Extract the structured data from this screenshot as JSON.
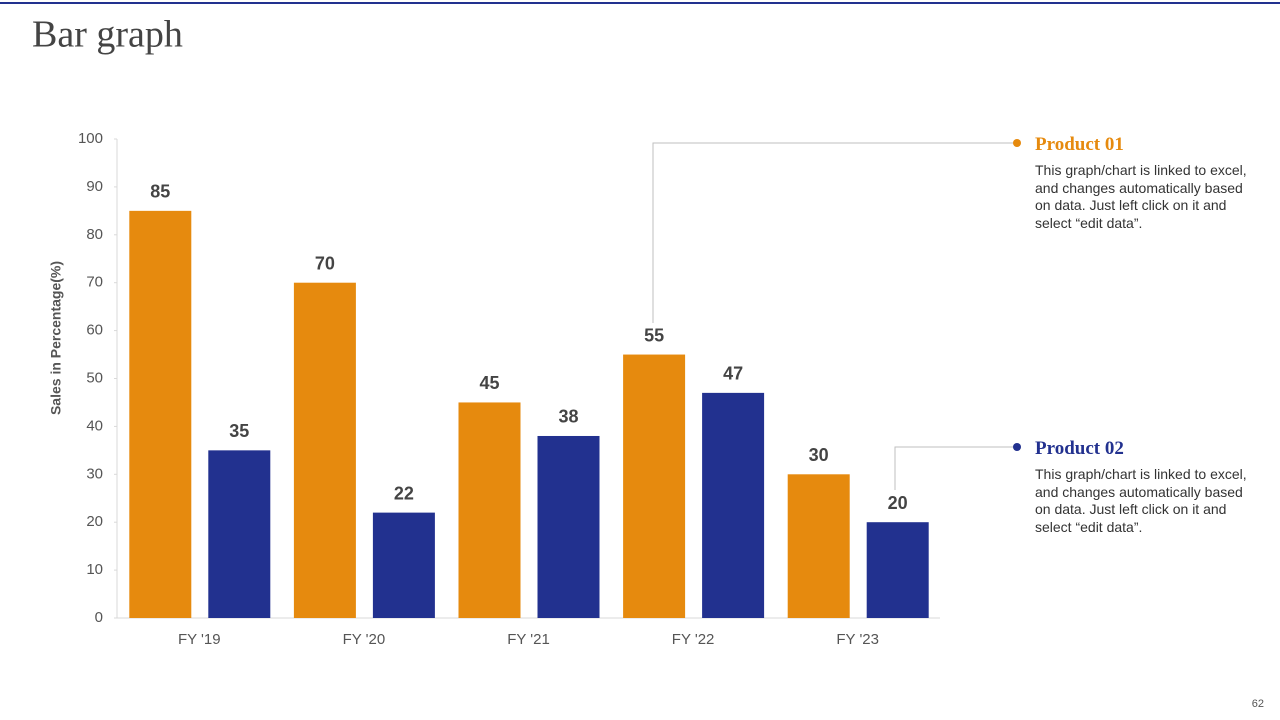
{
  "chart_data": {
    "type": "bar",
    "title": "Bar graph",
    "y_label": "Sales in Percentage(%)",
    "categories": [
      "FY '19",
      "FY '20",
      "FY '21",
      "FY '22",
      "FY '23"
    ],
    "series": [
      {
        "name": "Product 01",
        "color": "#e68a0e",
        "values": [
          85,
          70,
          45,
          55,
          30
        ],
        "description": "This graph/chart is linked to excel, and changes automatically based on data. Just left click on it and select “edit data”."
      },
      {
        "name": "Product 02",
        "color": "#22318f",
        "values": [
          35,
          22,
          38,
          47,
          20
        ],
        "description": "This graph/chart is linked to excel, and changes automatically based on data. Just left click on it and select “edit data”."
      }
    ],
    "ylim": [
      0,
      100
    ],
    "yticks": [
      0,
      10,
      20,
      30,
      40,
      50,
      60,
      70,
      80,
      90,
      100
    ],
    "grid": false
  },
  "page_number": "62"
}
